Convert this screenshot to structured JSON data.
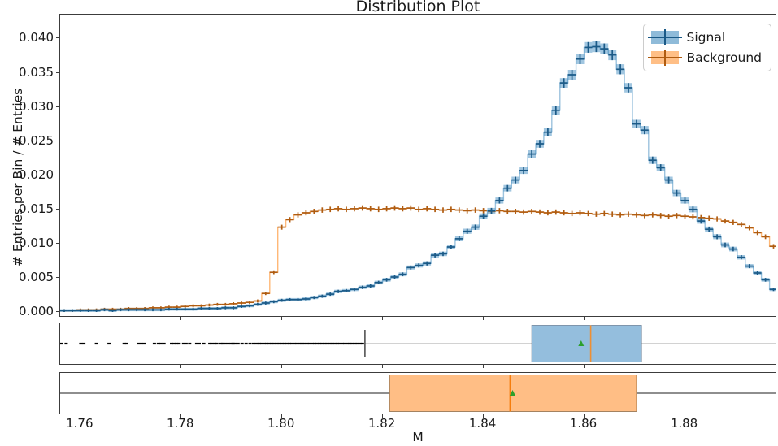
{
  "chart_data": {
    "type": "histogram",
    "title": "Distribution Plot",
    "xlabel": "M",
    "ylabel": "# Entries per Bin / # Entries",
    "xlim": [
      1.756,
      1.898
    ],
    "ylim": [
      -0.0006,
      0.0435
    ],
    "xticks": [
      1.76,
      1.78,
      1.8,
      1.82,
      1.84,
      1.86,
      1.88
    ],
    "xtick_labels": [
      "1.76",
      "1.78",
      "1.80",
      "1.82",
      "1.84",
      "1.86",
      "1.88"
    ],
    "yticks": [
      0.0,
      0.005,
      0.01,
      0.015,
      0.02,
      0.025,
      0.03,
      0.035,
      0.04
    ],
    "ytick_labels": [
      "0.000",
      "0.005",
      "0.010",
      "0.015",
      "0.020",
      "0.025",
      "0.030",
      "0.035",
      "0.040"
    ],
    "grid": false,
    "legend_position": "upper right",
    "bin_start": 1.756,
    "bin_width": 0.0016,
    "series": [
      {
        "key": "signal",
        "name": "Signal",
        "line_color": "#9cc3de",
        "box_fill": "#1f77b4",
        "marker_color": "#1b5a87",
        "err_base": 0.0002,
        "err_scale": 0.015,
        "show_boxes": true,
        "values": [
          0.0002,
          0.0002,
          0.0002,
          0.0002,
          0.0002,
          0.0003,
          0.0002,
          0.0003,
          0.0003,
          0.0003,
          0.0003,
          0.0003,
          0.0003,
          0.0004,
          0.0004,
          0.0004,
          0.0004,
          0.0005,
          0.0005,
          0.0005,
          0.0006,
          0.0006,
          0.0008,
          0.0009,
          0.0011,
          0.0013,
          0.0015,
          0.0017,
          0.0018,
          0.0018,
          0.0019,
          0.0021,
          0.0023,
          0.0026,
          0.003,
          0.0031,
          0.0033,
          0.0036,
          0.0038,
          0.0043,
          0.0047,
          0.0051,
          0.0055,
          0.0065,
          0.0068,
          0.0071,
          0.0083,
          0.0085,
          0.0095,
          0.0107,
          0.0118,
          0.0124,
          0.014,
          0.0148,
          0.0163,
          0.0181,
          0.0193,
          0.0207,
          0.0231,
          0.0246,
          0.0263,
          0.0295,
          0.0335,
          0.0347,
          0.037,
          0.0387,
          0.0388,
          0.0385,
          0.0376,
          0.0355,
          0.0328,
          0.0275,
          0.0266,
          0.0222,
          0.0211,
          0.0193,
          0.0174,
          0.0163,
          0.015,
          0.0133,
          0.0121,
          0.011,
          0.0098,
          0.0092,
          0.008,
          0.0067,
          0.0057,
          0.0047,
          0.0033
        ]
      },
      {
        "key": "background",
        "name": "Background",
        "line_color": "#ffb877",
        "box_fill": "#ff7f0e",
        "marker_color": "#b05c10",
        "err_base": 0.0002,
        "err_scale": 0.013,
        "show_boxes": false,
        "values": [
          0.0002,
          0.0002,
          0.0003,
          0.0003,
          0.0003,
          0.0004,
          0.0004,
          0.0004,
          0.0005,
          0.0005,
          0.0005,
          0.0006,
          0.0006,
          0.0007,
          0.0007,
          0.0008,
          0.0009,
          0.0009,
          0.001,
          0.0011,
          0.0011,
          0.0012,
          0.0013,
          0.0014,
          0.0016,
          0.0027,
          0.0058,
          0.0124,
          0.0135,
          0.0142,
          0.0145,
          0.0147,
          0.0149,
          0.015,
          0.0151,
          0.015,
          0.0151,
          0.0152,
          0.0151,
          0.015,
          0.0151,
          0.0152,
          0.0151,
          0.0152,
          0.015,
          0.0151,
          0.015,
          0.0149,
          0.015,
          0.0149,
          0.0148,
          0.0149,
          0.0148,
          0.0147,
          0.0148,
          0.0147,
          0.0147,
          0.0146,
          0.0147,
          0.0146,
          0.0145,
          0.0146,
          0.0145,
          0.0144,
          0.0145,
          0.0144,
          0.0143,
          0.0144,
          0.0143,
          0.0142,
          0.0143,
          0.0142,
          0.0141,
          0.0142,
          0.0141,
          0.014,
          0.0141,
          0.014,
          0.0139,
          0.0138,
          0.0137,
          0.0136,
          0.0133,
          0.0131,
          0.0128,
          0.0123,
          0.0116,
          0.011,
          0.0096
        ]
      }
    ],
    "boxplots": [
      {
        "key": "signal",
        "name": "Signal",
        "q1": 1.8496,
        "median": 1.8613,
        "q3": 1.8714,
        "mean": 1.8594,
        "whisker_low": 1.8165,
        "whisker_low_capped": true,
        "whisker_high": 1.91,
        "whisker_high_capped": false,
        "box_fill": "#94bedd",
        "box_edge": "rgba(35,60,90,0.45)",
        "median_color": "#ef8f33",
        "whisker_color": "#b8b8b8",
        "cap_color": "#3a3a3a",
        "flier_color": "#000000",
        "fliers": [
          1.7563,
          1.7572,
          1.7601,
          1.7607,
          1.7632,
          1.7657,
          1.7687,
          1.7692,
          1.7715,
          1.7721,
          1.7727,
          1.7747,
          1.7755,
          1.776,
          1.7766,
          1.7781,
          1.7786,
          1.7791,
          1.7796,
          1.7805,
          1.781,
          1.7817,
          1.7831,
          1.7836,
          1.7845,
          1.7857,
          1.7861,
          1.7867,
          1.7871,
          1.7879,
          1.7883,
          1.7887,
          1.7893,
          1.7899,
          1.7903,
          1.7907,
          1.7913,
          1.7921,
          1.7929,
          1.7937,
          1.7944,
          1.795,
          1.7955,
          1.796,
          1.7965,
          1.797,
          1.7975,
          1.798,
          1.7985,
          1.799,
          1.7995,
          1.8,
          1.8005,
          1.801,
          1.8015,
          1.802,
          1.8025,
          1.803,
          1.8035,
          1.804,
          1.8045,
          1.805,
          1.8055,
          1.806,
          1.8065,
          1.807,
          1.8075,
          1.808,
          1.8085,
          1.809,
          1.8095,
          1.81,
          1.8105,
          1.811,
          1.8115,
          1.812,
          1.8125,
          1.813,
          1.8135,
          1.814,
          1.8145,
          1.815,
          1.8155,
          1.816
        ]
      },
      {
        "key": "background",
        "name": "Background",
        "q1": 1.8214,
        "median": 1.8453,
        "q3": 1.8704,
        "mean": 1.8458,
        "whisker_low": 1.74,
        "whisker_low_capped": false,
        "whisker_high": 1.91,
        "whisker_high_capped": false,
        "box_fill": "#ffbe85",
        "box_edge": "rgba(90,55,15,0.55)",
        "median_color": "#f57d0d",
        "whisker_color": "#4a4a4a",
        "cap_color": "#3a3a3a",
        "flier_color": "#000000",
        "fliers": []
      }
    ],
    "mean_marker_color": "#2ca02c",
    "legend": [
      {
        "label": "Signal",
        "fill": "#8fbbd9",
        "cross": "#1b5a87"
      },
      {
        "label": "Background",
        "fill": "#ffbf86",
        "cross": "#b05c10"
      }
    ]
  }
}
